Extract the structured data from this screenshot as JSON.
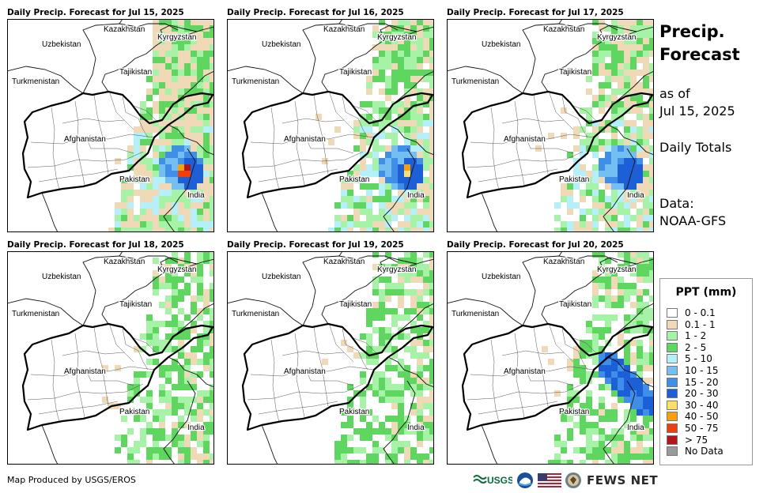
{
  "panels": [
    {
      "title": "Daily Precip. Forecast for Jul 15, 2025",
      "wet": 3
    },
    {
      "title": "Daily Precip. Forecast for Jul 16, 2025",
      "wet": 2
    },
    {
      "title": "Daily Precip. Forecast for Jul 17, 2025",
      "wet": 2
    },
    {
      "title": "Daily Precip. Forecast for Jul 18, 2025",
      "wet": 1
    },
    {
      "title": "Daily Precip. Forecast for Jul 19, 2025",
      "wet": 1
    },
    {
      "title": "Daily Precip. Forecast for Jul 20, 2025",
      "wet": 1
    }
  ],
  "map_labels": {
    "kazakhstan": "Kazakhstan",
    "kyrgyzstan": "Kyrgyzstan",
    "uzbekistan": "Uzbekistan",
    "tajikistan": "Tajikistan",
    "turkmenistan": "Turkmenistan",
    "afghanistan": "Afghanistan",
    "pakistan": "Pakistan",
    "india": "India"
  },
  "sidebar": {
    "title_line1": "Precip.",
    "title_line2": "Forecast",
    "as_of": "as of",
    "date": "Jul 15, 2025",
    "totals": "Daily Totals",
    "data_label": "Data:",
    "data_source": "NOAA-GFS"
  },
  "legend": {
    "title": "PPT (mm)",
    "items": [
      {
        "label": "0 - 0.1",
        "color": "#ffffff"
      },
      {
        "label": "0.1 - 1",
        "color": "#efd9b6"
      },
      {
        "label": "1 - 2",
        "color": "#a6f2a6"
      },
      {
        "label": "2 - 5",
        "color": "#5fd65f"
      },
      {
        "label": "5 - 10",
        "color": "#b4effa"
      },
      {
        "label": "10 - 15",
        "color": "#74bef2"
      },
      {
        "label": "15 - 20",
        "color": "#3f8ee8"
      },
      {
        "label": "20 - 30",
        "color": "#1c5fd6"
      },
      {
        "label": "30 - 40",
        "color": "#fbe06e"
      },
      {
        "label": "40 - 50",
        "color": "#f5a10f"
      },
      {
        "label": "50 - 75",
        "color": "#ef3f0d"
      },
      {
        "label": "> 75",
        "color": "#b3151a"
      },
      {
        "label": "No Data",
        "color": "#9a9a9a"
      }
    ]
  },
  "footer": {
    "credit": "Map Produced by USGS/EROS",
    "usgs": "USGS",
    "fews": "FEWS NET"
  }
}
